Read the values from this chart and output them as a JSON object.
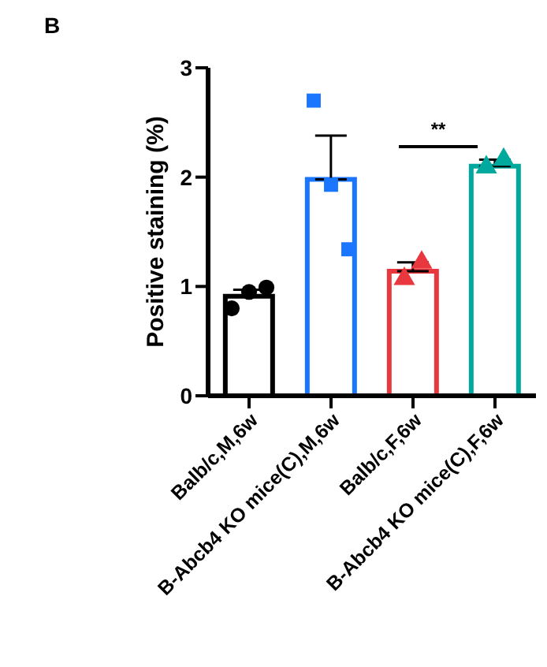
{
  "chart_data": {
    "type": "bar",
    "title": "B",
    "ylabel": "Positive staining (%)",
    "categories": [
      "Balb/c,M,6w",
      "B-Abcb4 KO mice(C),M,6w",
      "Balb/c,F,6w",
      "B-Abcb4 KO mice(C),F,6w"
    ],
    "series": [
      {
        "colors": [
          "#000000",
          "#1a75ff",
          "#e8383d",
          "#00a99d"
        ],
        "values": [
          0.91,
          1.98,
          1.14,
          2.1
        ],
        "errors": [
          0.06,
          0.4,
          0.08,
          0.06
        ]
      },
      {
        "type": "scatter",
        "color": "#000000",
        "marker": "circle",
        "x": [
          "Balb/c,M,6w",
          "Balb/c,M,6w",
          "Balb/c,M,6w"
        ],
        "values": [
          0.8,
          0.95,
          0.99
        ]
      },
      {
        "type": "scatter",
        "color": "#1a75ff",
        "marker": "square",
        "x": [
          "B-Abcb4 KO mice(C),M,6w",
          "B-Abcb4 KO mice(C),M,6w",
          "B-Abcb4 KO mice(C),M,6w"
        ],
        "values": [
          2.7,
          1.93,
          1.34
        ]
      },
      {
        "type": "scatter",
        "color": "#e8383d",
        "marker": "triangle",
        "x": [
          "Balb/c,F,6w",
          "Balb/c,F,6w"
        ],
        "values": [
          1.07,
          1.22
        ]
      },
      {
        "type": "scatter",
        "color": "#00a99d",
        "marker": "triangle",
        "x": [
          "B-Abcb4 KO mice(C),F,6w",
          "B-Abcb4 KO mice(C),F,6w"
        ],
        "values": [
          2.09,
          2.16
        ]
      }
    ],
    "ylim": [
      0,
      3
    ],
    "yticks": [
      0,
      1,
      2,
      3
    ],
    "grid": false,
    "legend": false,
    "annotations": [
      "**"
    ]
  }
}
